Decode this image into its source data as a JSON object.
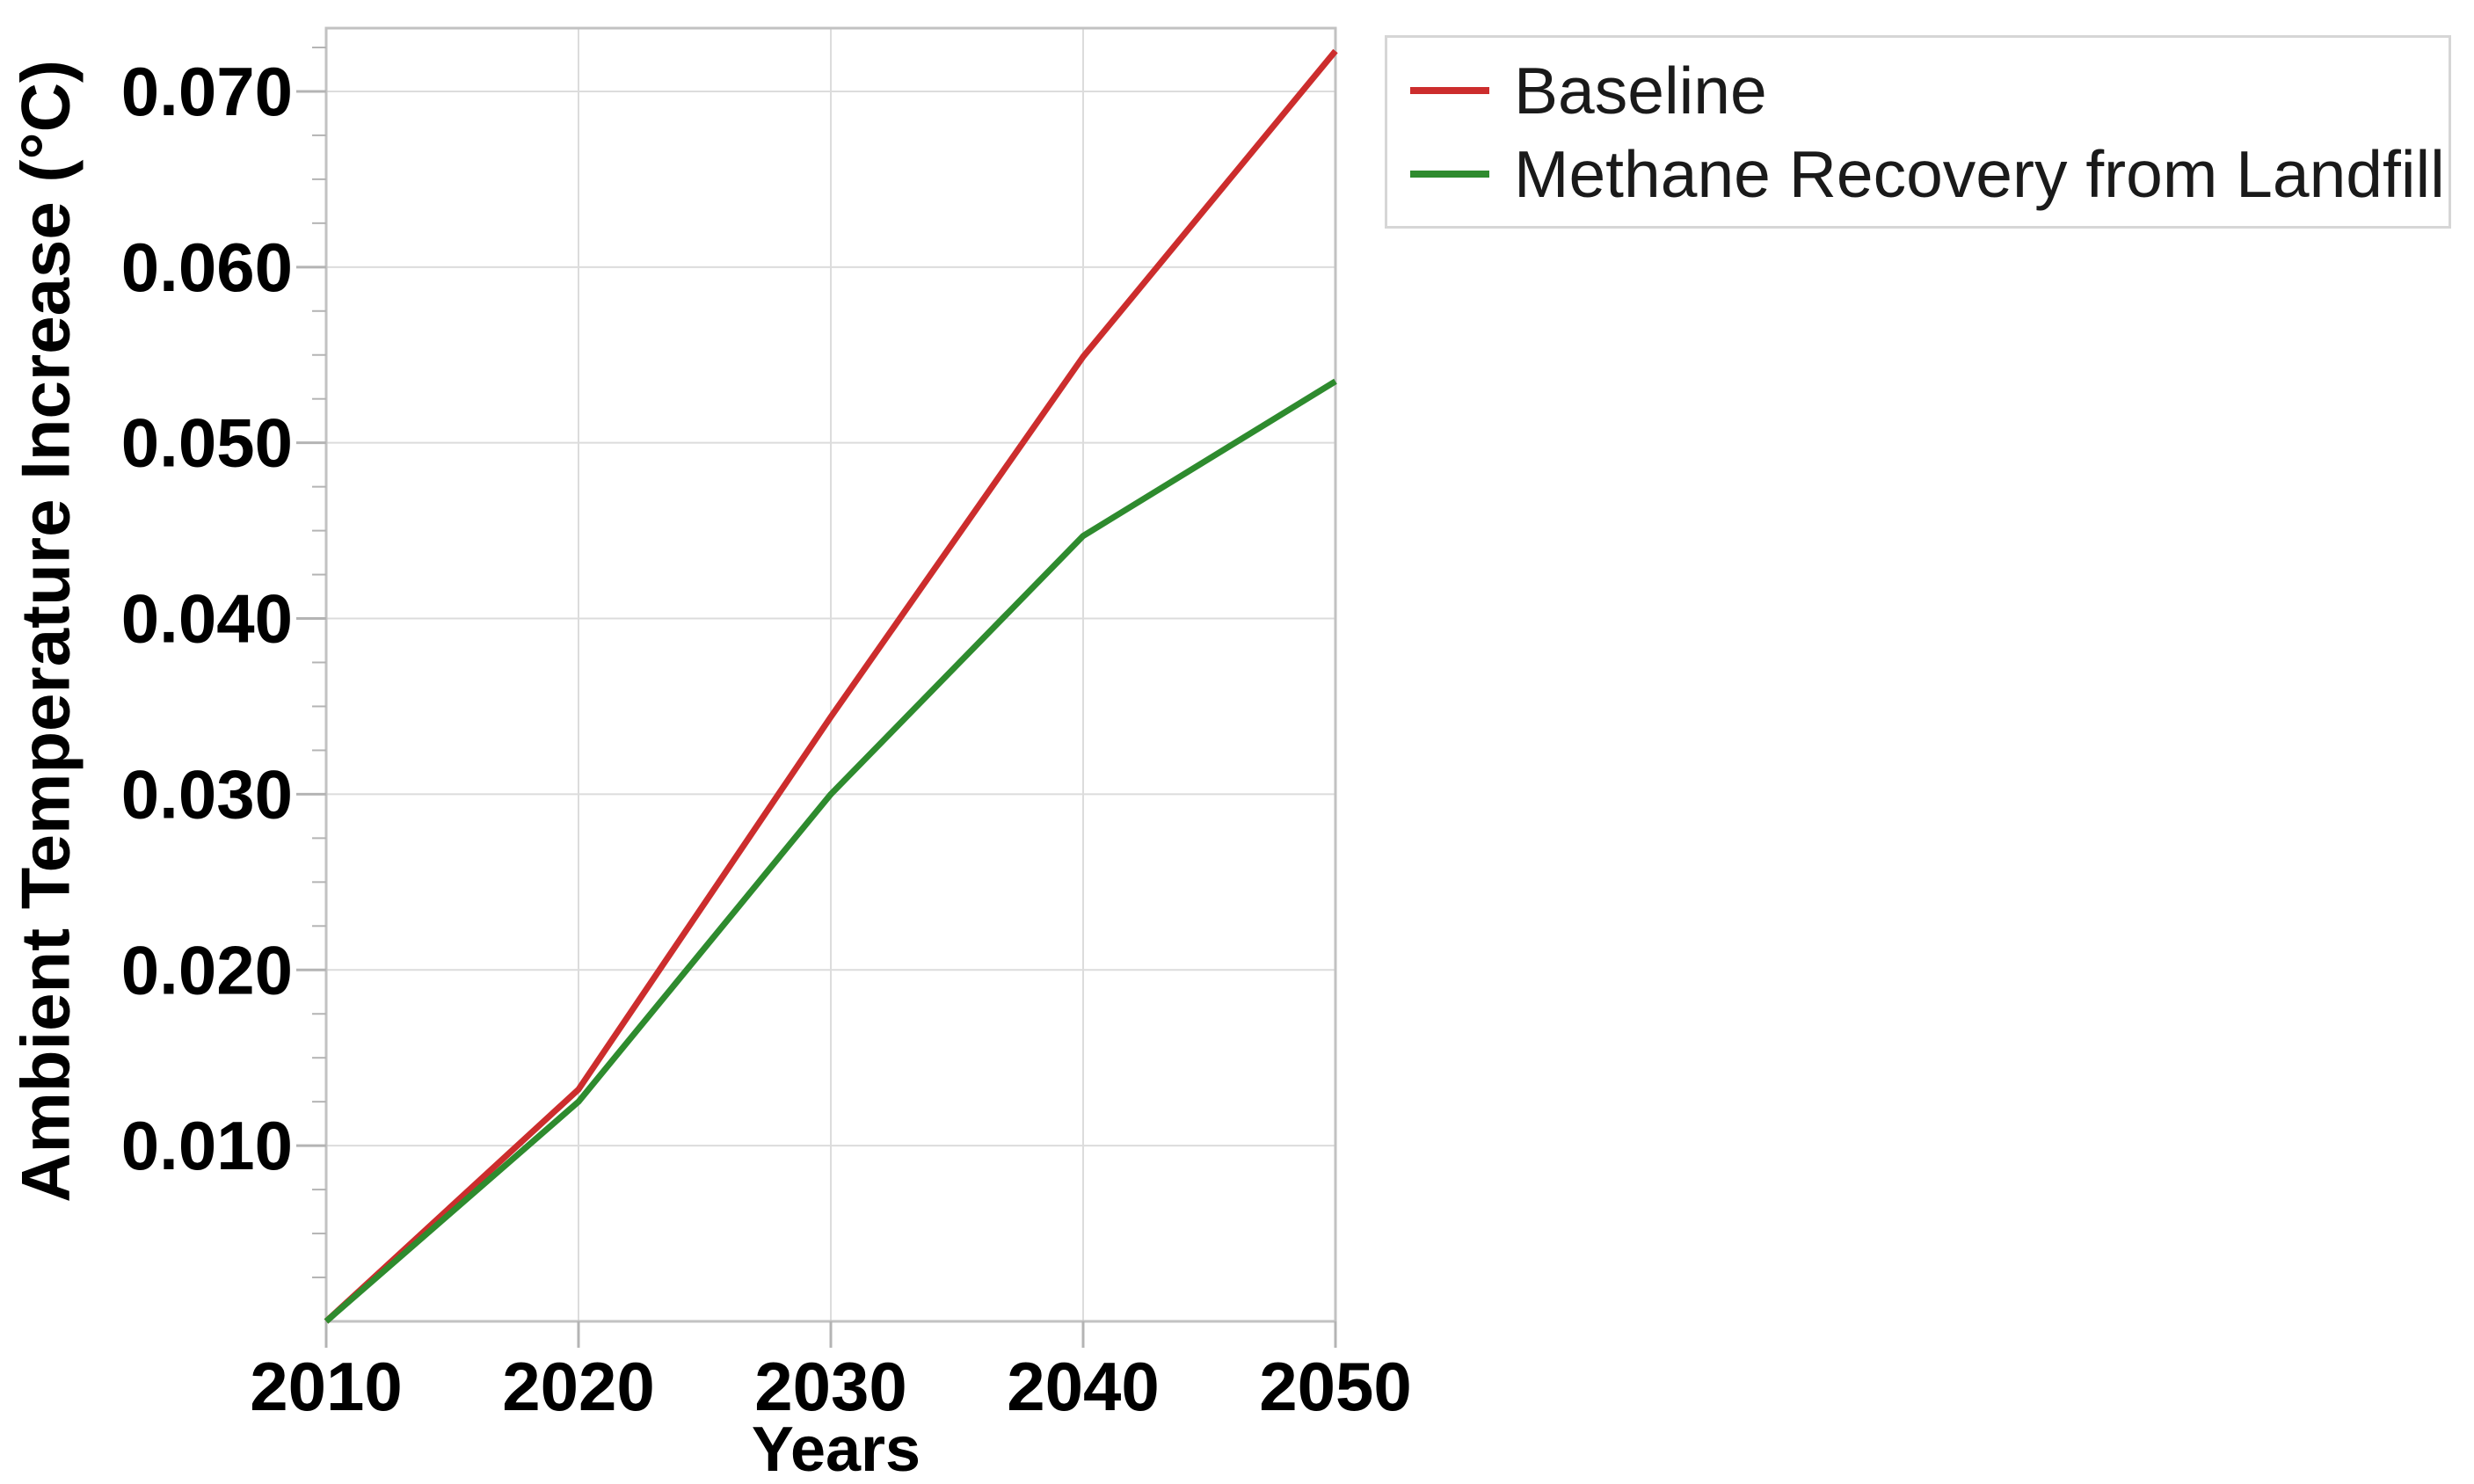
{
  "chart_data": {
    "type": "line",
    "title": "",
    "xlabel": "Years",
    "ylabel": "Ambient Temperature Increase (°C)",
    "x": [
      2010,
      2020,
      2030,
      2040,
      2050
    ],
    "x_tick_labels": [
      "2010",
      "2020",
      "2030",
      "2040",
      "2050"
    ],
    "y_major_ticks": [
      0.01,
      0.02,
      0.03,
      0.04,
      0.05,
      0.06,
      0.07
    ],
    "y_tick_labels": [
      "0.010",
      "0.020",
      "0.030",
      "0.040",
      "0.050",
      "0.060",
      "0.070"
    ],
    "y_minor_tick_step": 0.0025,
    "xlim": [
      2010,
      2050
    ],
    "ylim": [
      0,
      0.0736
    ],
    "grid": true,
    "legend_position": "top-right",
    "series": [
      {
        "name": "Baseline",
        "color": "#cc2d2d",
        "values": [
          0.0,
          0.0132,
          0.0344,
          0.0549,
          0.0723
        ]
      },
      {
        "name": "Methane Recovery from Landfill",
        "color": "#2e8b2e",
        "values": [
          0.0,
          0.0125,
          0.03,
          0.0447,
          0.0535
        ]
      }
    ]
  },
  "styles": {
    "background": "#ffffff",
    "grid_color": "#dcdcdc",
    "axis_border_color": "#c2c2c2",
    "tick_color": "#b4b4b4",
    "text_color": "#000000",
    "legend_text_color": "#1a1a1a",
    "legend_border_color": "#d6d6d6"
  }
}
